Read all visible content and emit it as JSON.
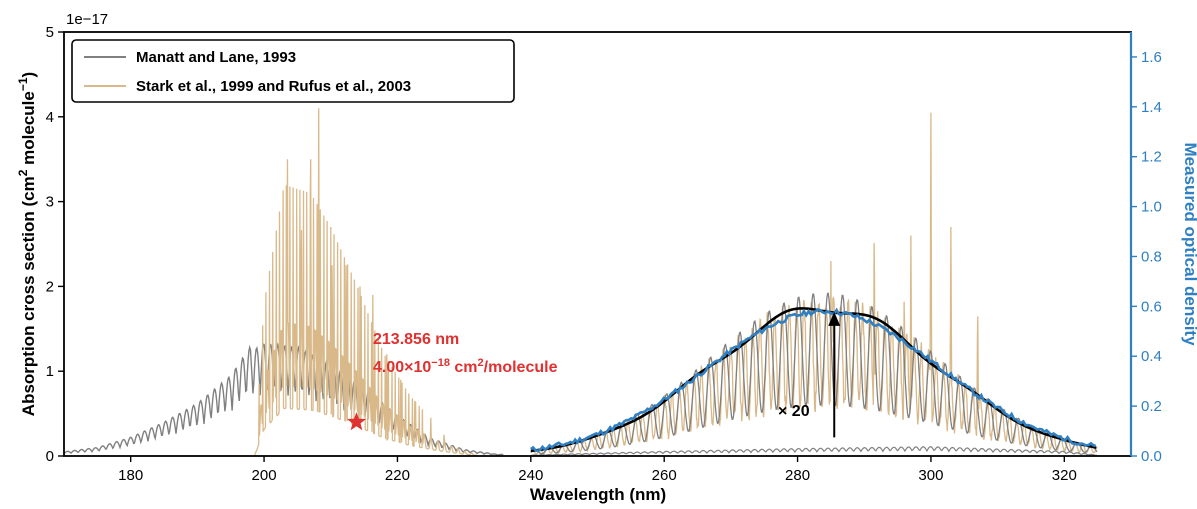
{
  "chart_data": {
    "type": "line",
    "title": "",
    "xlabel": "Wavelength (nm)",
    "xlim": [
      170,
      330
    ],
    "x_ticks": [
      180,
      200,
      220,
      240,
      260,
      280,
      300,
      320
    ],
    "y_left": {
      "label_main": "Absorption cross section (cm",
      "label_sup1": "2",
      "label_mid": " molecule",
      "label_sup2": "−1",
      "label_end": ")",
      "lim": [
        0,
        5
      ],
      "ticks": [
        0,
        1,
        2,
        3,
        4,
        5
      ],
      "multiplier": "1e−17"
    },
    "y_right": {
      "label": "Measured optical density",
      "lim": [
        0,
        1.7
      ],
      "ticks": [
        "0.0",
        "0.2",
        "0.4",
        "0.6",
        "0.8",
        "1.0",
        "1.2",
        "1.4",
        "1.6"
      ],
      "color": "#2f7fc1"
    },
    "legend": {
      "placement": "top-left",
      "entries": [
        {
          "label": "Manatt and Lane, 1993",
          "color": "#808080"
        },
        {
          "label": "Stark et al., 1999 and Rufus et al., 2003",
          "color": "#d9b98a"
        }
      ]
    },
    "series": [
      {
        "name": "Manatt and Lane, 1993",
        "color": "#808080",
        "note_envelope_x": [
          170,
          175,
          180,
          185,
          190,
          195,
          198,
          200,
          205,
          210,
          215,
          220,
          225,
          230,
          235
        ],
        "envelope_y": [
          0.05,
          0.1,
          0.22,
          0.4,
          0.62,
          0.95,
          1.3,
          1.4,
          1.35,
          1.15,
          0.85,
          0.5,
          0.22,
          0.08,
          0.02
        ],
        "band2_x": [
          240,
          260,
          280,
          300,
          320,
          325
        ],
        "band2_y": [
          0.01,
          0.05,
          0.08,
          0.1,
          0.05,
          0.01
        ]
      },
      {
        "name": "Stark et al., 1999 and Rufus et al., 2003",
        "color": "#d9b98a"
      },
      {
        "name": "",
        "color": "#000000"
      },
      {
        "name": "",
        "color": "#2f7fc1"
      }
    ],
    "annotations": {
      "star": {
        "x": 213.856,
        "y": 0.4,
        "color": "#e03030"
      },
      "star_label_line1": "213.856 nm",
      "star_label_line2_a": "4.00×10",
      "star_label_line2_sup": "−18",
      "star_label_line2_b": " cm",
      "star_label_line2_sup2": "2",
      "star_label_line2_c": "/molecule",
      "multiplier_label": "× 20",
      "arrow": {
        "x": 285.5,
        "y_from": 0.22,
        "y_to": 1.7
      }
    }
  }
}
